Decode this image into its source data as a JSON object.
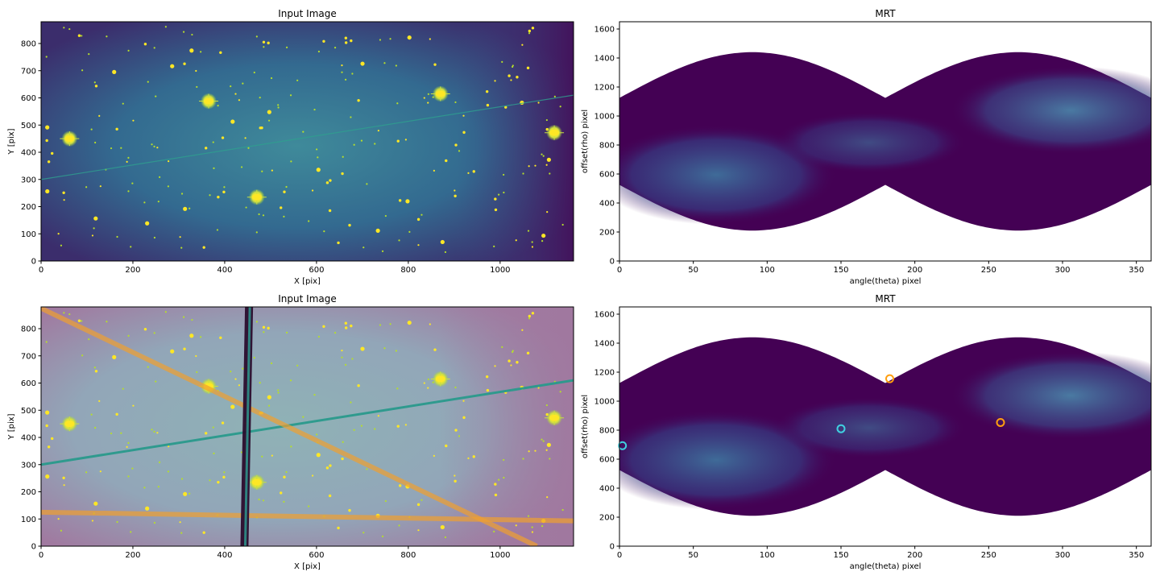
{
  "colors": {
    "background_purple": "#440154",
    "sky_teal": "#3b6f8f",
    "star_yellow": "#fde725",
    "overlay_pink": "#a0789f",
    "streak_teal": "#2a9a8c",
    "streak_orange": "#f0a030",
    "streak_dark": "#2b0d2e",
    "mrt_mid": "#3a5a8c",
    "mrt_bright": "#4a7aa0",
    "peak_cyan": "#40d0e0",
    "peak_orange": "#ff9f10"
  },
  "chart_data": [
    {
      "type": "heatmap",
      "title": "Input Image",
      "xlabel": "X [pix]",
      "ylabel": "Y [pix]",
      "xlim": [
        0,
        1160
      ],
      "ylim": [
        0,
        880
      ],
      "x_ticks": [
        0,
        200,
        400,
        600,
        800,
        1000
      ],
      "y_ticks": [
        0,
        100,
        200,
        300,
        400,
        500,
        600,
        700,
        800
      ],
      "bright_stars": [
        [
          62,
          450
        ],
        [
          365,
          588
        ],
        [
          470,
          235
        ],
        [
          870,
          615
        ],
        [
          1118,
          472
        ]
      ],
      "streaks": []
    },
    {
      "type": "heatmap",
      "title": "MRT",
      "xlabel": "angle(theta) pixel",
      "ylabel": "offset(rho) pixel",
      "xlim": [
        0,
        360
      ],
      "ylim": [
        0,
        1650
      ],
      "x_ticks": [
        0,
        50,
        100,
        150,
        200,
        250,
        300,
        350
      ],
      "y_ticks": [
        0,
        200,
        400,
        600,
        800,
        1000,
        1200,
        1400,
        1600
      ],
      "peaks": []
    },
    {
      "type": "heatmap",
      "title": "Input Image",
      "xlabel": "X [pix]",
      "ylabel": "Y [pix]",
      "xlim": [
        0,
        1160
      ],
      "ylim": [
        0,
        880
      ],
      "x_ticks": [
        0,
        200,
        400,
        600,
        800,
        1000
      ],
      "y_ticks": [
        0,
        100,
        200,
        300,
        400,
        500,
        600,
        700,
        800
      ],
      "bright_stars": [
        [
          62,
          450
        ],
        [
          365,
          588
        ],
        [
          470,
          235
        ],
        [
          870,
          615
        ],
        [
          1118,
          472
        ]
      ],
      "streaks": [
        {
          "from": [
            0,
            300
          ],
          "to": [
            1160,
            610
          ],
          "color": "teal"
        },
        {
          "from": [
            0,
            875
          ],
          "to": [
            1080,
            0
          ],
          "color": "orange"
        },
        {
          "from": [
            0,
            125
          ],
          "to": [
            1160,
            93
          ],
          "color": "orange"
        },
        {
          "from": [
            453,
            880
          ],
          "to": [
            443,
            0
          ],
          "color": "dark"
        }
      ]
    },
    {
      "type": "heatmap",
      "title": "MRT",
      "xlabel": "angle(theta) pixel",
      "ylabel": "offset(rho) pixel",
      "xlim": [
        0,
        360
      ],
      "ylim": [
        0,
        1650
      ],
      "x_ticks": [
        0,
        50,
        100,
        150,
        200,
        250,
        300,
        350
      ],
      "y_ticks": [
        0,
        200,
        400,
        600,
        800,
        1000,
        1200,
        1400,
        1600
      ],
      "peaks": [
        {
          "theta": 2,
          "rho": 693,
          "color": "cyan"
        },
        {
          "theta": 150,
          "rho": 810,
          "color": "cyan"
        },
        {
          "theta": 183,
          "rho": 1155,
          "color": "orange"
        },
        {
          "theta": 258,
          "rho": 853,
          "color": "orange"
        }
      ]
    }
  ]
}
